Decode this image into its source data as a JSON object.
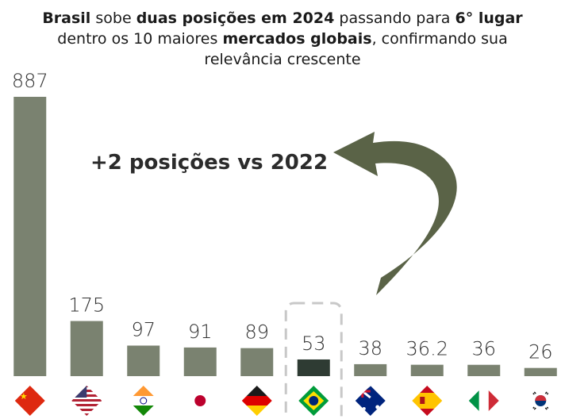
{
  "title": {
    "part1_bold": "Brasil",
    "part2": " sobe ",
    "part3_bold": "duas posições em 2024",
    "part4": " passando para ",
    "part5_bold": "6° lugar",
    "part6": " dentro os 10 maiores ",
    "part7_bold": "mercados globais",
    "part8": ", confirmando sua relevância crescente"
  },
  "callout": "+2 posições vs 2022",
  "colors": {
    "bar": "#7a8270",
    "highlight": "#2e3b33",
    "arrow": "#5a6347",
    "box": "#c8c8c8"
  },
  "chart_data": {
    "type": "bar",
    "categories": [
      "China",
      "Estados Unidos",
      "Índia",
      "Japão",
      "Alemanha",
      "Brasil",
      "Austrália",
      "Espanha",
      "Itália",
      "Coreia do Sul"
    ],
    "values": [
      887,
      175,
      97,
      91,
      89,
      53,
      38,
      36.2,
      36,
      26
    ],
    "value_labels": [
      "887",
      "175",
      "97",
      "91",
      "89",
      "53",
      "38",
      "36.2",
      "36",
      "26"
    ],
    "highlight_index": 5,
    "icons": [
      "flag-china-icon",
      "flag-usa-icon",
      "flag-india-icon",
      "flag-japan-icon",
      "flag-germany-icon",
      "flag-brazil-icon",
      "flag-australia-icon",
      "flag-spain-icon",
      "flag-italy-icon",
      "flag-south-korea-icon"
    ],
    "ylim": [
      0,
      887
    ]
  }
}
